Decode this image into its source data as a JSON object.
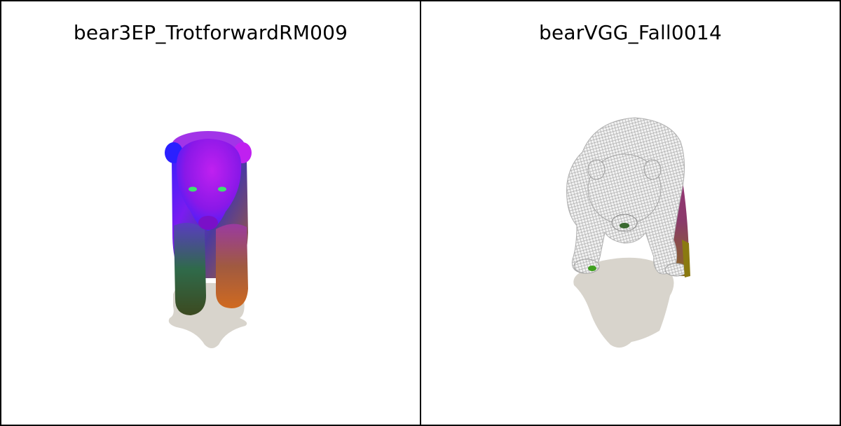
{
  "panels": [
    {
      "title": "bear3EP_TrotforwardRM009"
    },
    {
      "title": "bearVGG_Fall0014"
    }
  ]
}
